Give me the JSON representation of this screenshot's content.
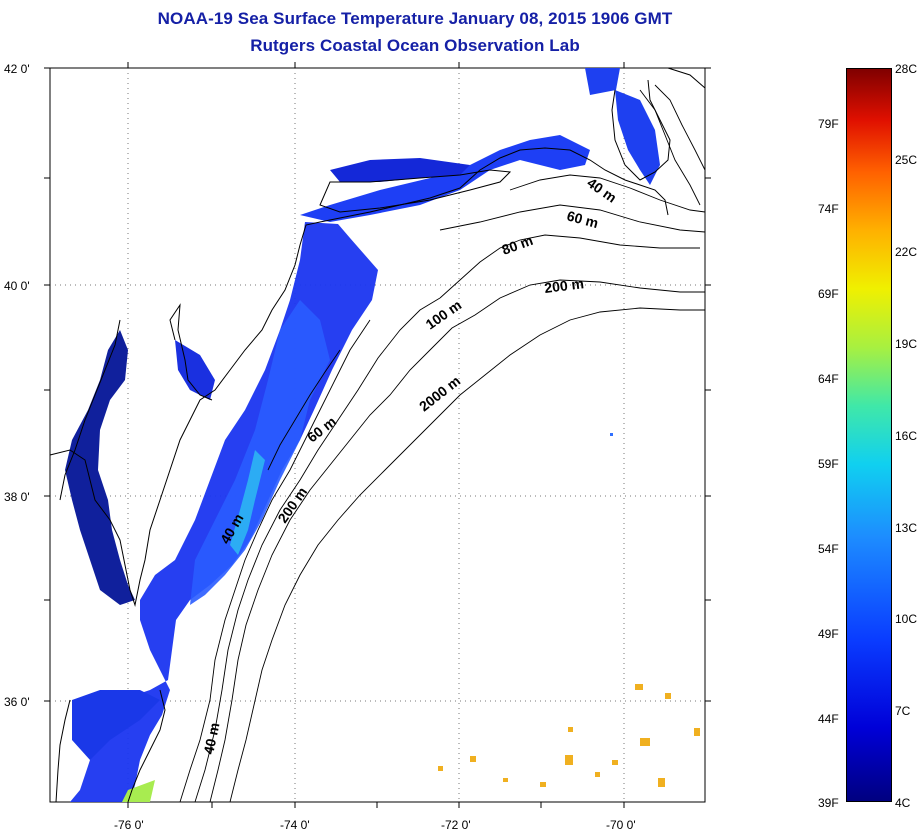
{
  "header": {
    "title": "NOAA-19 Sea Surface Temperature January 08, 2015 1906 GMT",
    "subtitle": "Rutgers Coastal Ocean Observation Lab"
  },
  "map": {
    "lat_labels": [
      "42 0'",
      "40 0'",
      "38 0'",
      "36 0'"
    ],
    "lon_labels": [
      "-76 0'",
      "-74 0'",
      "-72 0'",
      "-70 0'"
    ],
    "grid": true,
    "isobath_labels": [
      "40 m",
      "60 m",
      "80 m",
      "200 m",
      "100 m",
      "2000 m",
      "60 m",
      "40 m",
      "200 m",
      "40 m"
    ],
    "land_color": "#ffffff",
    "coastline_color": "#000000"
  },
  "colorbar": {
    "fahrenheit_labels": [
      "79F",
      "74F",
      "69F",
      "64F",
      "59F",
      "54F",
      "49F",
      "44F",
      "39F"
    ],
    "celsius_labels": [
      "28C",
      "25C",
      "22C",
      "19C",
      "16C",
      "13C",
      "10C",
      "7C",
      "4C"
    ],
    "scale_min_c": 4,
    "scale_max_c": 28,
    "colors": [
      "#000080",
      "#0000d8",
      "#1d8cff",
      "#10d0f0",
      "#a8f040",
      "#f0f000",
      "#ffb000",
      "#ff6000",
      "#800000"
    ]
  }
}
